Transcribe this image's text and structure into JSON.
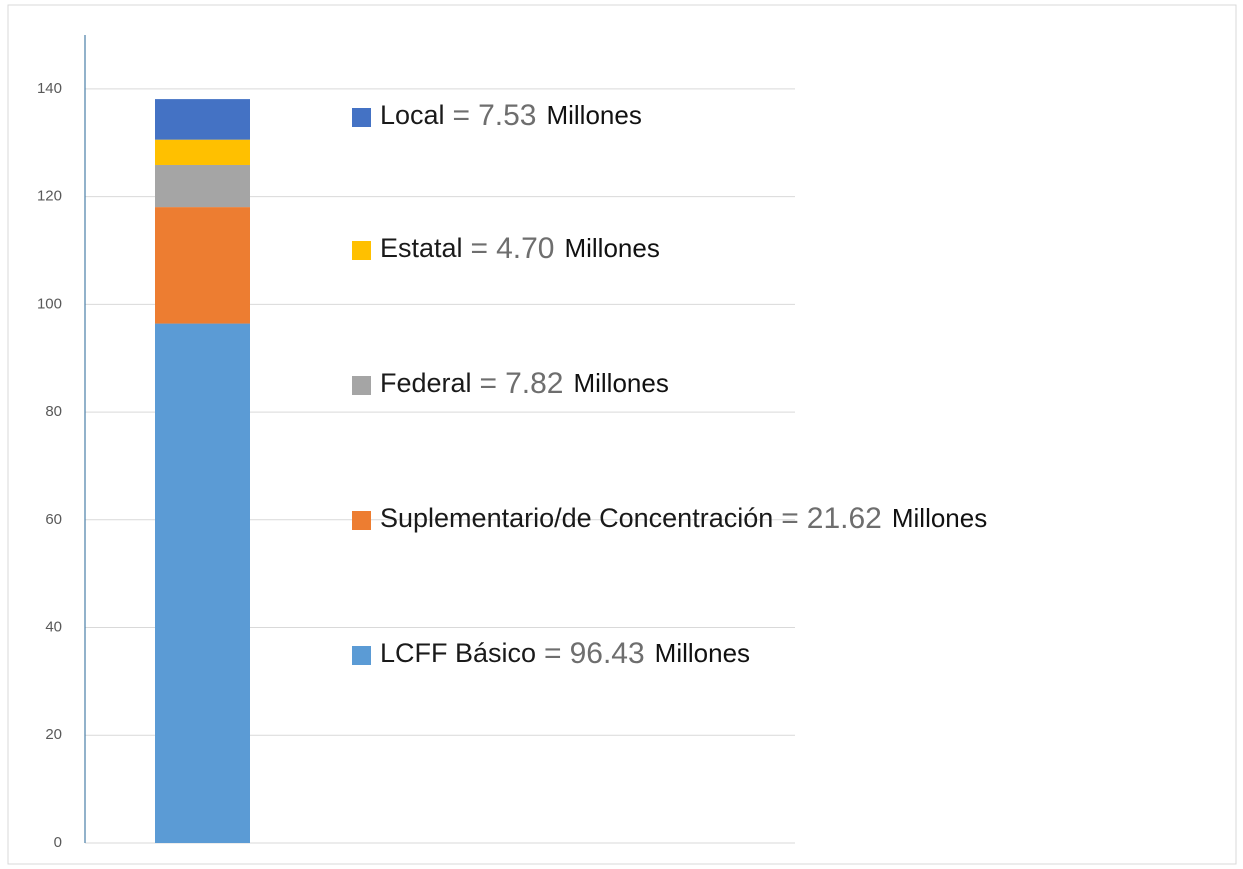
{
  "chart_data": {
    "type": "bar",
    "stacked": true,
    "ylim": [
      0,
      150
    ],
    "yticks": [
      0,
      20,
      40,
      60,
      80,
      100,
      120,
      140
    ],
    "grid": true,
    "value_sep": "=",
    "unit": "Millones",
    "series": [
      {
        "name": "LCFF Básico",
        "color": "#5b9bd5",
        "values": [
          96.43
        ],
        "value_labels": [
          "96.43"
        ]
      },
      {
        "name": "Suplementario/de Concentración",
        "color": "#ed7d31",
        "values": [
          21.62
        ],
        "value_labels": [
          "21.62"
        ]
      },
      {
        "name": "Federal",
        "color": "#a5a5a5",
        "values": [
          7.82
        ],
        "value_labels": [
          "7.82"
        ]
      },
      {
        "name": "Estatal",
        "color": "#ffc000",
        "values": [
          4.7
        ],
        "value_labels": [
          "4.70"
        ]
      },
      {
        "name": "Local",
        "color": "#4472c4",
        "values": [
          7.53
        ],
        "value_labels": [
          "7.53"
        ]
      }
    ]
  }
}
